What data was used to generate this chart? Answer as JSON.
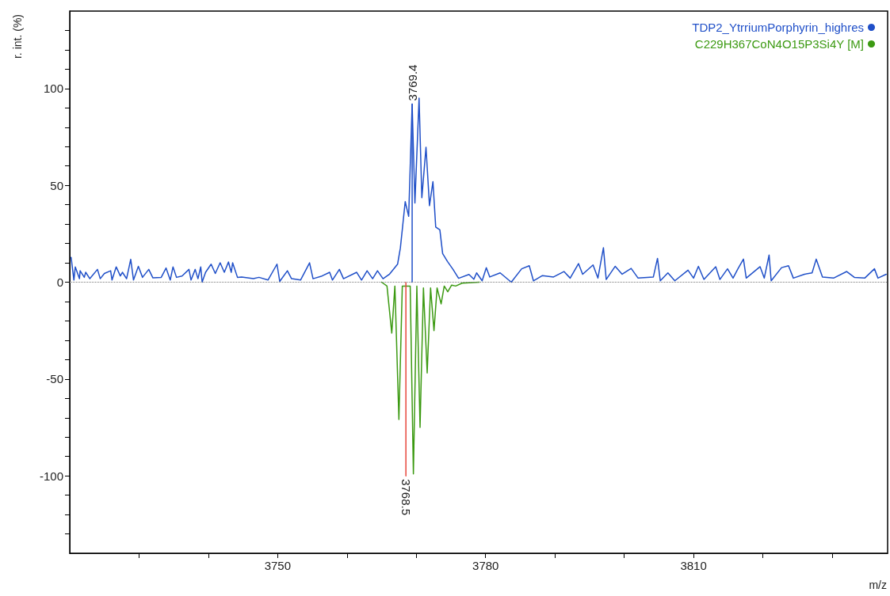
{
  "chart_data": {
    "type": "line",
    "xlabel": "m/z",
    "ylabel": "r. int. (%)",
    "xlim": [
      3720,
      3838
    ],
    "ylim": [
      -140,
      140
    ],
    "xticks": [
      {
        "value": 3730,
        "label": null
      },
      {
        "value": 3740,
        "label": null
      },
      3750,
      {
        "value": 3760,
        "label": null
      },
      {
        "value": 3770,
        "label": null
      },
      3780,
      {
        "value": 3790,
        "label": null
      },
      {
        "value": 3800,
        "label": null
      },
      3810,
      {
        "value": 3820,
        "label": null
      },
      {
        "value": 3830,
        "label": null
      }
    ],
    "yticks": [
      {
        "value": -130,
        "label": null
      },
      {
        "value": -120,
        "label": null
      },
      {
        "value": -110,
        "label": null
      },
      -100,
      {
        "value": -90,
        "label": null
      },
      {
        "value": -80,
        "label": null
      },
      {
        "value": -70,
        "label": null
      },
      {
        "value": -60,
        "label": null
      },
      -50,
      {
        "value": -40,
        "label": null
      },
      {
        "value": -30,
        "label": null
      },
      {
        "value": -20,
        "label": null
      },
      {
        "value": -10,
        "label": null
      },
      0,
      {
        "value": 10,
        "label": null
      },
      {
        "value": 20,
        "label": null
      },
      {
        "value": 30,
        "label": null
      },
      {
        "value": 40,
        "label": null
      },
      50,
      {
        "value": 60,
        "label": null
      },
      {
        "value": 70,
        "label": null
      },
      {
        "value": 80,
        "label": null
      },
      {
        "value": 90,
        "label": null
      },
      100,
      {
        "value": 110,
        "label": null
      },
      {
        "value": 120,
        "label": null
      },
      {
        "value": 130,
        "label": null
      }
    ],
    "grid": false,
    "legend": "top right",
    "marker": "none",
    "line_style": "solid",
    "ref_lines": [
      {
        "axis": "y",
        "value": 0,
        "color": "#777777",
        "line_style": "dotted"
      }
    ],
    "annotations": [
      {
        "text": "3769.4",
        "x": 3769.4,
        "y": 92
      },
      {
        "text": "3768.5",
        "x": 3768.5,
        "y": -100
      }
    ],
    "series": [
      {
        "name": "TDP2_YtrriumPorphyrin_highres",
        "color": "#1f4fc8",
        "x": [
          3720.2,
          3720.6,
          3720.8,
          3721.4,
          3721.5,
          3722.1,
          3722.3,
          3722.9,
          3724.0,
          3724.4,
          3725.0,
          3725.9,
          3726.1,
          3726.7,
          3727.3,
          3727.6,
          3728.2,
          3728.8,
          3729.2,
          3729.9,
          3730.5,
          3731.4,
          3732.0,
          3733.2,
          3733.9,
          3734.5,
          3734.9,
          3735.4,
          3736.2,
          3737.2,
          3737.5,
          3738.1,
          3738.5,
          3738.9,
          3739.1,
          3739.6,
          3740.4,
          3741.0,
          3741.7,
          3742.3,
          3742.9,
          3743.3,
          3743.5,
          3744.2,
          3744.8,
          3746.5,
          3747.3,
          3748.6,
          3749.9,
          3750.3,
          3751.4,
          3752.0,
          3753.3,
          3754.6,
          3755.1,
          3756.4,
          3757.5,
          3757.9,
          3758.9,
          3759.5,
          3761.4,
          3762.1,
          3762.9,
          3763.7,
          3764.4,
          3765.2,
          3766.1,
          3767.3,
          3767.7,
          3768.4,
          3768.9,
          3769.4,
          3769.8,
          3770.4,
          3770.8,
          3771.4,
          3771.9,
          3772.4,
          3772.8,
          3773.4,
          3773.8,
          3774.5,
          3775.3,
          3776.1,
          3777.6,
          3778.3,
          3778.7,
          3779.5,
          3780.1,
          3780.6,
          3782.1,
          3783.7,
          3785.2,
          3786.3,
          3786.9,
          3788.2,
          3789.8,
          3791.3,
          3792.2,
          3793.4,
          3794.0,
          3795.5,
          3796.2,
          3797.0,
          3797.4,
          3798.7,
          3799.7,
          3801.0,
          3802.0,
          3804.2,
          3804.8,
          3805.2,
          3806.3,
          3807.3,
          3809.2,
          3810.0,
          3810.7,
          3811.5,
          3813.2,
          3813.8,
          3814.9,
          3815.7,
          3816.4,
          3817.2,
          3817.6,
          3819.6,
          3820.2,
          3820.9,
          3821.2,
          3822.7,
          3823.7,
          3824.4,
          3826.0,
          3827.1,
          3827.7,
          3828.6,
          3830.2,
          3832.1,
          3833.2,
          3834.7,
          3836.1,
          3836.6,
          3837.8
        ],
        "values": [
          12.8,
          1.1,
          7.9,
          1.8,
          5.9,
          2.5,
          5.1,
          1.8,
          6.6,
          1.8,
          4.5,
          5.9,
          1.1,
          7.9,
          3.2,
          5.1,
          1.8,
          11.8,
          1.1,
          8.2,
          2.5,
          6.6,
          2.2,
          2.5,
          7.3,
          1.1,
          7.9,
          2.5,
          3.2,
          6.6,
          1.1,
          6.6,
          1.8,
          7.9,
          0,
          5.1,
          9.3,
          4.5,
          10,
          5.1,
          10.4,
          5.1,
          10,
          2.5,
          2.7,
          1.8,
          2.5,
          1.1,
          9.3,
          0.4,
          5.9,
          1.8,
          1.1,
          10,
          1.8,
          3.2,
          5.1,
          1.1,
          6.6,
          1.8,
          5.1,
          1.1,
          5.9,
          1.8,
          5.9,
          1.8,
          4,
          9.3,
          17.6,
          41.6,
          34,
          92,
          40.9,
          95,
          43.6,
          69.7,
          39.5,
          51.9,
          28.5,
          27,
          14.8,
          10.7,
          6.6,
          2,
          4,
          1.5,
          4.8,
          0.7,
          7.5,
          2.7,
          4.8,
          0,
          6.9,
          8.5,
          0.7,
          3.4,
          2.7,
          5.5,
          2.1,
          9.6,
          4.1,
          8.9,
          2.1,
          17.8,
          1.4,
          8.2,
          4.1,
          7.1,
          2.1,
          2.7,
          12.3,
          0.7,
          4.8,
          0.7,
          6.2,
          2.1,
          8.2,
          1.4,
          8,
          1.4,
          6.9,
          2.1,
          6.9,
          11.9,
          2.1,
          8,
          2.1,
          14,
          0.7,
          7.5,
          8.5,
          2.1,
          4.1,
          4.8,
          11.9,
          2.7,
          2.1,
          5.5,
          2.5,
          2.1,
          6.9,
          2.1,
          4.1
        ]
      },
      {
        "name": "C229H367CoN4O15P3Si4Y [M]",
        "color": "#3c9a12",
        "x": [
          3765.0,
          3765.77,
          3766.46,
          3766.91,
          3767.49,
          3767.98,
          3768.51,
          3769.12,
          3769.58,
          3770.08,
          3770.54,
          3771.03,
          3771.57,
          3772.06,
          3772.55,
          3773.0,
          3773.58,
          3774.03,
          3774.54,
          3775.1,
          3775.68,
          3776.6,
          3779.1
        ],
        "values": [
          0,
          -2,
          -26.3,
          -2,
          -70.9,
          -2,
          null,
          -2,
          -99,
          -2,
          -75,
          -3,
          -46.9,
          -3,
          -25,
          -3,
          -11.2,
          -2,
          -5,
          -1.5,
          -2,
          -0.5,
          0
        ]
      },
      {
        "color": "#e8453c",
        "x": [
          3768.5,
          3768.5
        ],
        "values": [
          0,
          -100
        ]
      },
      {
        "color": "#1f4fc8",
        "x": [
          3769.4,
          3769.4
        ],
        "values": [
          0,
          92
        ]
      }
    ]
  }
}
